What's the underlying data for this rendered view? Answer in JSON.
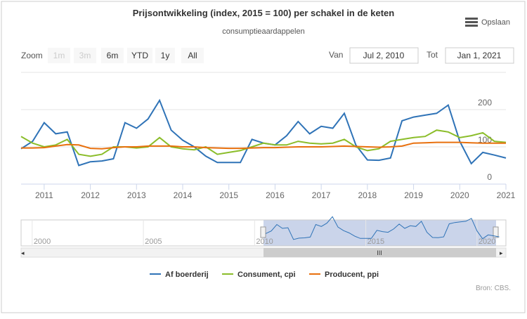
{
  "chart_data": {
    "type": "line",
    "title": "Prijsontwikkeling (index, 2015 = 100) per schakel in de keten",
    "subtitle": "consumptieaardappelen",
    "source": "Bron: CBS.",
    "menu": "Opslaan",
    "zoom": {
      "label": "Zoom",
      "buttons": [
        "1m",
        "3m",
        "6m",
        "YTD",
        "1y",
        "All"
      ]
    },
    "range": {
      "from_label": "Van",
      "from": "Jul 2, 2010",
      "to_label": "Tot",
      "to": "Jan 1, 2021"
    },
    "x": [
      2010.5,
      2010.75,
      2011,
      2011.25,
      2011.5,
      2011.75,
      2012,
      2012.25,
      2012.5,
      2012.75,
      2013,
      2013.25,
      2013.5,
      2013.75,
      2014,
      2014.25,
      2014.5,
      2014.75,
      2015,
      2015.25,
      2015.5,
      2015.75,
      2016,
      2016.25,
      2016.5,
      2016.75,
      2017,
      2017.25,
      2017.5,
      2017.75,
      2018,
      2018.25,
      2018.5,
      2018.75,
      2019,
      2019.25,
      2019.5,
      2019.75,
      2020,
      2020.25,
      2020.5,
      2020.75,
      2021
    ],
    "series": [
      {
        "name": "Af boerderij",
        "color": "#2f73b7",
        "values": [
          95,
          115,
          165,
          135,
          140,
          50,
          60,
          62,
          68,
          165,
          150,
          175,
          225,
          145,
          118,
          100,
          75,
          58,
          58,
          58,
          120,
          110,
          105,
          130,
          168,
          135,
          155,
          150,
          190,
          105,
          65,
          64,
          70,
          170,
          180,
          185,
          190,
          212,
          115,
          55,
          85,
          78,
          70
        ]
      },
      {
        "name": "Consument, cpi",
        "color": "#8bbd2a",
        "values": [
          128,
          110,
          100,
          105,
          120,
          80,
          75,
          80,
          100,
          100,
          97,
          100,
          125,
          100,
          95,
          92,
          100,
          80,
          85,
          90,
          100,
          110,
          105,
          105,
          115,
          110,
          108,
          110,
          120,
          100,
          90,
          95,
          115,
          120,
          125,
          128,
          145,
          140,
          125,
          130,
          138,
          115,
          112
        ]
      },
      {
        "name": "Producent, ppi",
        "color": "#e8700e",
        "values": [
          97,
          97,
          98,
          102,
          106,
          105,
          96,
          95,
          98,
          100,
          100,
          102,
          102,
          102,
          100,
          100,
          98,
          97,
          96,
          96,
          97,
          98,
          98,
          99,
          100,
          100,
          100,
          101,
          102,
          101,
          100,
          99,
          100,
          102,
          110,
          111,
          112,
          112,
          112,
          111,
          110,
          110,
          110
        ]
      }
    ],
    "xlim": [
      2010.5,
      2021
    ],
    "xticks": [
      2011,
      2012,
      2013,
      2014,
      2015,
      2016,
      2017,
      2018,
      2019,
      2020,
      2021
    ],
    "ylim": [
      0,
      300
    ],
    "yticks": [
      0,
      100,
      200
    ],
    "grid": true,
    "navigator": {
      "xlim": [
        1999.5,
        2021.3
      ],
      "xticks": [
        2000,
        2005,
        2010,
        2015,
        2020
      ]
    }
  }
}
